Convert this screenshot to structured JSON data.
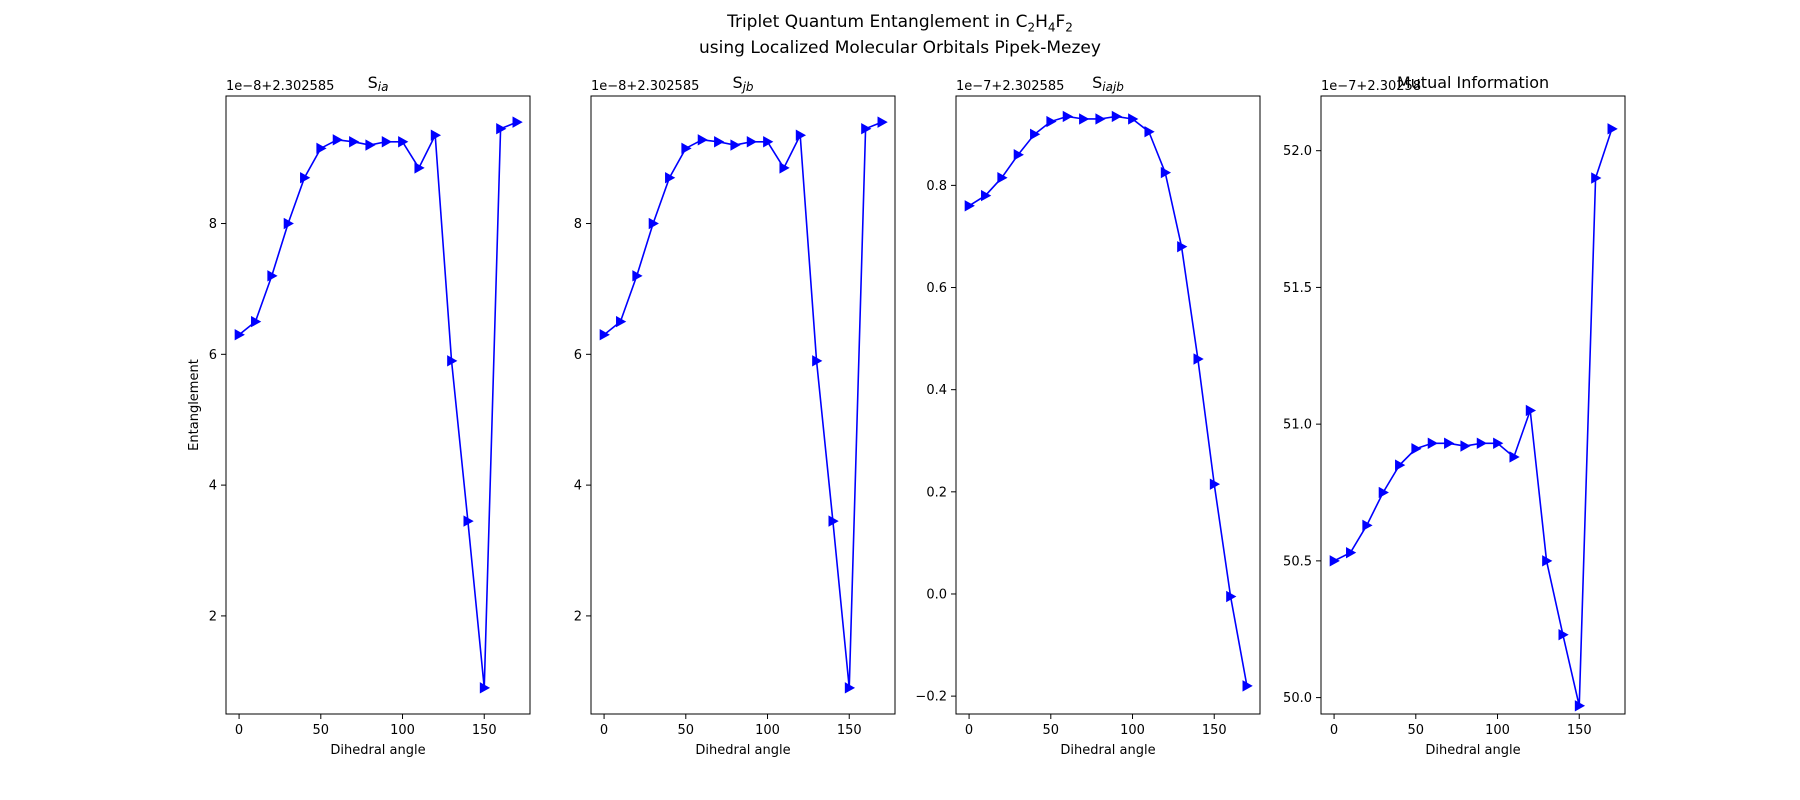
{
  "figure": {
    "title_line1_prefix": "Triplet Quantum Entanglement in C",
    "title_sub1": "2",
    "title_mid1": "H",
    "title_sub2": "4",
    "title_mid2": "F",
    "title_sub3": "2",
    "title_line2": "using Localized Molecular Orbitals Pipek-Mezey"
  },
  "colors": {
    "series": "#0000ff",
    "axis": "#000000",
    "background": "#ffffff"
  },
  "chart_data": [
    {
      "type": "line",
      "marker": "triangle-right",
      "title": "S",
      "title_sub": "ia",
      "xlabel": "Dihedral angle",
      "ylabel": "Entanglement",
      "offset_text": "1e−8+2.302585",
      "xlim": [
        -8,
        178
      ],
      "ylim": [
        0.5,
        9.95
      ],
      "xticks": [
        0,
        50,
        100,
        150
      ],
      "yticks": [
        2,
        4,
        6,
        8
      ],
      "ytick_labels": [
        "2",
        "4",
        "6",
        "8"
      ],
      "x": [
        0,
        10,
        20,
        30,
        40,
        50,
        60,
        70,
        80,
        90,
        100,
        110,
        120,
        130,
        140,
        150,
        160,
        170
      ],
      "values": [
        6.3,
        6.5,
        7.2,
        8.0,
        8.7,
        9.15,
        9.28,
        9.25,
        9.2,
        9.25,
        9.25,
        8.85,
        9.35,
        5.9,
        3.45,
        0.9,
        9.45,
        9.55
      ]
    },
    {
      "type": "line",
      "marker": "triangle-right",
      "title": "S",
      "title_sub": "jb",
      "xlabel": "Dihedral angle",
      "ylabel": "",
      "offset_text": "1e−8+2.302585",
      "xlim": [
        -8,
        178
      ],
      "ylim": [
        0.5,
        9.95
      ],
      "xticks": [
        0,
        50,
        100,
        150
      ],
      "yticks": [
        2,
        4,
        6,
        8
      ],
      "ytick_labels": [
        "2",
        "4",
        "6",
        "8"
      ],
      "x": [
        0,
        10,
        20,
        30,
        40,
        50,
        60,
        70,
        80,
        90,
        100,
        110,
        120,
        130,
        140,
        150,
        160,
        170
      ],
      "values": [
        6.3,
        6.5,
        7.2,
        8.0,
        8.7,
        9.15,
        9.28,
        9.25,
        9.2,
        9.25,
        9.25,
        8.85,
        9.35,
        5.9,
        3.45,
        0.9,
        9.45,
        9.55
      ]
    },
    {
      "type": "line",
      "marker": "triangle-right",
      "title": "S",
      "title_sub": "iajb",
      "xlabel": "Dihedral angle",
      "ylabel": "",
      "offset_text": "1e−7+2.302585",
      "xlim": [
        -8,
        178
      ],
      "ylim": [
        -0.235,
        0.975
      ],
      "xticks": [
        0,
        50,
        100,
        150
      ],
      "yticks": [
        -0.2,
        0.0,
        0.2,
        0.4,
        0.6,
        0.8
      ],
      "ytick_labels": [
        "−0.2",
        "0.0",
        "0.2",
        "0.4",
        "0.6",
        "0.8"
      ],
      "x": [
        0,
        10,
        20,
        30,
        40,
        50,
        60,
        70,
        80,
        90,
        100,
        110,
        120,
        130,
        140,
        150,
        160,
        170
      ],
      "values": [
        0.76,
        0.78,
        0.815,
        0.86,
        0.9,
        0.925,
        0.935,
        0.93,
        0.93,
        0.935,
        0.93,
        0.905,
        0.825,
        0.68,
        0.46,
        0.215,
        -0.005,
        -0.18
      ]
    },
    {
      "type": "line",
      "marker": "triangle-right",
      "title": "Mutual Information",
      "title_sub": "",
      "xlabel": "Dihedral angle",
      "ylabel": "",
      "offset_text": "1e−7+2.30258",
      "xlim": [
        -8,
        178
      ],
      "ylim": [
        49.94,
        52.2
      ],
      "xticks": [
        0,
        50,
        100,
        150
      ],
      "yticks": [
        50.0,
        50.5,
        51.0,
        51.5,
        52.0
      ],
      "ytick_labels": [
        "50.0",
        "50.5",
        "51.0",
        "51.5",
        "52.0"
      ],
      "x": [
        0,
        10,
        20,
        30,
        40,
        50,
        60,
        70,
        80,
        90,
        100,
        110,
        120,
        130,
        140,
        150,
        160,
        170
      ],
      "values": [
        50.5,
        50.53,
        50.63,
        50.75,
        50.85,
        50.91,
        50.93,
        50.93,
        50.92,
        50.93,
        50.93,
        50.88,
        51.05,
        50.5,
        50.23,
        49.97,
        51.9,
        52.08
      ]
    }
  ]
}
